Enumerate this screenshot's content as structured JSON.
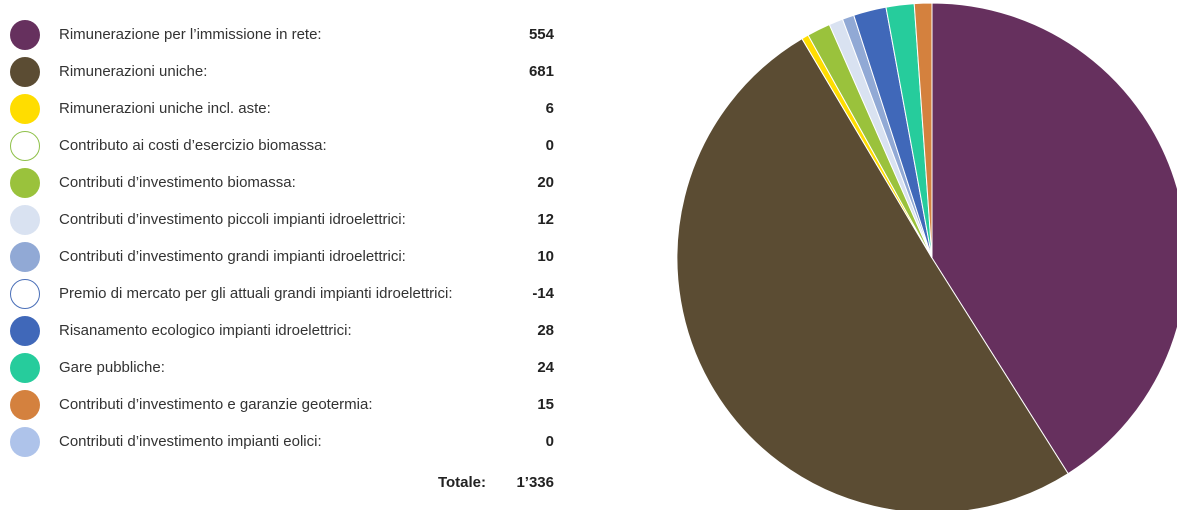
{
  "chart_data": {
    "type": "pie",
    "start_angle_deg": 0,
    "direction": "clockwise",
    "slices": [
      {
        "label": "Rimunerazione per l’immissione in rete:",
        "value": "554",
        "num": 554,
        "color": "#66305e",
        "filled": true
      },
      {
        "label": "Rimunerazioni uniche:",
        "value": "681",
        "num": 681,
        "color": "#5b4c33",
        "filled": true
      },
      {
        "label": "Rimunerazioni uniche incl. aste:",
        "value": "6",
        "num": 6,
        "color": "#ffdd00",
        "filled": true
      },
      {
        "label": "Contributo ai costi d’esercizio biomassa:",
        "value": "0",
        "num": 0,
        "color": "#8fc14a",
        "filled": false
      },
      {
        "label": "Contributi d’investimento biomassa:",
        "value": "20",
        "num": 20,
        "color": "#9ac23c",
        "filled": true
      },
      {
        "label": "Contributi d’investimento piccoli impianti idroelettrici:",
        "value": "12",
        "num": 12,
        "color": "#d9e2f1",
        "filled": true
      },
      {
        "label": "Contributi d’investimento grandi impianti idroelettrici:",
        "value": "10",
        "num": 10,
        "color": "#91a9d5",
        "filled": true
      },
      {
        "label": "Premio di mercato per gli attuali grandi impianti idroelettrici:",
        "value": "-14",
        "num": 0,
        "color": "#4a6fb8",
        "filled": false
      },
      {
        "label": "Risanamento ecologico impianti idroelettrici:",
        "value": "28",
        "num": 28,
        "color": "#4068b9",
        "filled": true
      },
      {
        "label": "Gare pubbliche:",
        "value": "24",
        "num": 24,
        "color": "#26cc9c",
        "filled": true
      },
      {
        "label": "Contributi d’investimento e garanzie geotermia:",
        "value": "15",
        "num": 15,
        "color": "#d4813e",
        "filled": true
      },
      {
        "label": "Contributi d’investimento impianti eolici:",
        "value": "0",
        "num": 0,
        "color": "#aec3ea",
        "filled": true
      }
    ],
    "total_label": "Totale:",
    "total_value": "1’336",
    "slice_border_color": "#ffffff"
  }
}
